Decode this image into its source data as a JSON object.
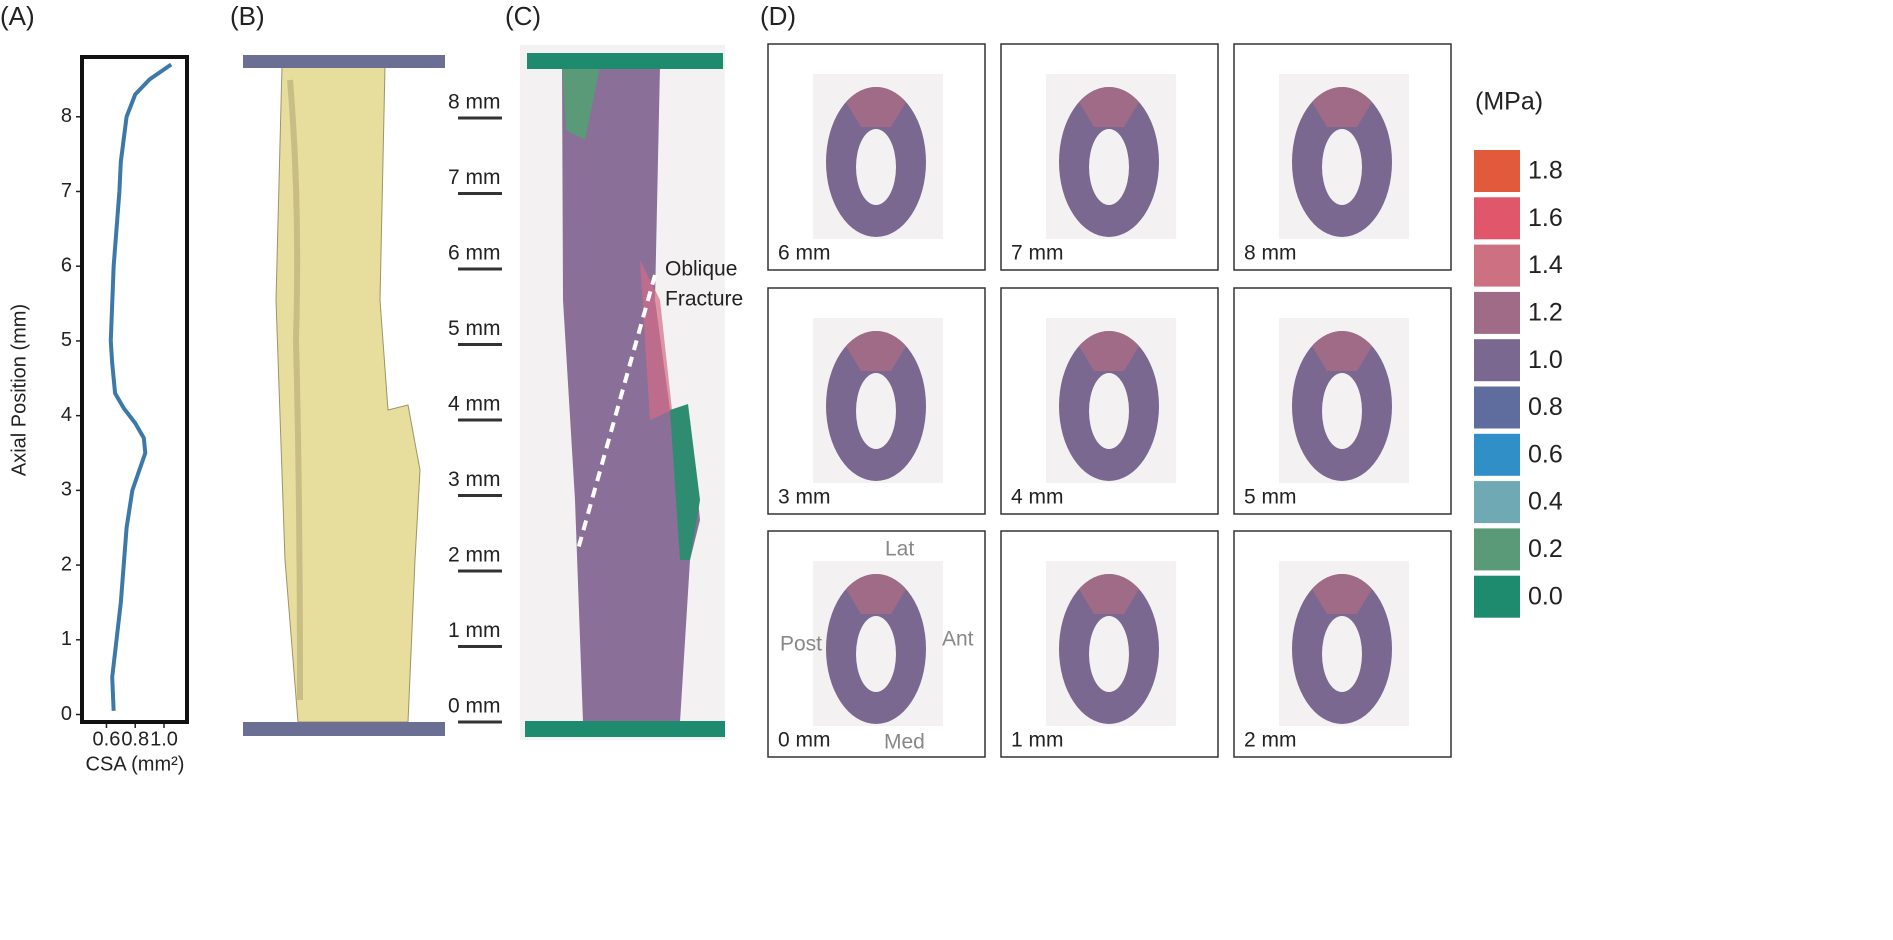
{
  "chart_data": {
    "type": "line",
    "xlabel": "CSA (mm²)",
    "ylabel": "Axial Position (mm)",
    "x": [
      0.65,
      0.64,
      0.67,
      0.7,
      0.72,
      0.74,
      0.78,
      0.87,
      0.86,
      0.8,
      0.72,
      0.66,
      0.64,
      0.63,
      0.64,
      0.65,
      0.67,
      0.69,
      0.7,
      0.72,
      0.74,
      0.8,
      0.9,
      1.05
    ],
    "series": [
      {
        "color": "#3d79a8",
        "values": [
          0.05,
          0.5,
          1,
          1.5,
          2,
          2.5,
          3,
          3.5,
          3.7,
          3.9,
          4.1,
          4.3,
          4.7,
          5,
          5.5,
          6,
          6.5,
          7,
          7.4,
          7.7,
          8,
          8.3,
          8.5,
          8.7
        ]
      }
    ],
    "xlim": [
      0.43,
      1.16
    ],
    "ylim": [
      -0.1,
      8.8
    ],
    "xticks": [
      0.6,
      0.8,
      {
        "value": 1,
        "label": "1.0"
      }
    ],
    "yticks": [
      0,
      1,
      2,
      3,
      4,
      5,
      6,
      7,
      8
    ]
  },
  "panel_labels": [
    "(A)",
    "(B)",
    "(C)",
    "(D)"
  ],
  "panel_c": {
    "scale_labels": [
      "8 mm",
      "7 mm",
      "6 mm",
      "5 mm",
      "4 mm",
      "3 mm",
      "2 mm",
      "1 mm",
      "0 mm"
    ],
    "annotation": [
      "Oblique",
      "Fracture"
    ]
  },
  "panel_d": {
    "sections": [
      "6 mm",
      "7 mm",
      "8 mm",
      "3 mm",
      "4 mm",
      "5 mm",
      "0 mm",
      "1 mm",
      "2 mm"
    ],
    "orientation": {
      "top": "Lat",
      "left": "Post",
      "right": "Ant",
      "bottom": "Med"
    },
    "colorbar": {
      "title": "(MPa)",
      "labels": [
        "1.8",
        "1.6",
        "1.4",
        "1.2",
        "1.0",
        "0.8",
        "0.6",
        "0.4",
        "0.2",
        "0.0"
      ],
      "colors": [
        "#e15a3c",
        "#e0566b",
        "#cd7182",
        "#a06b86",
        "#7a6890",
        "#5f6d9e",
        "#2f8fc6",
        "#6fa9b3",
        "#5a9a78",
        "#1e8a6e"
      ]
    }
  }
}
